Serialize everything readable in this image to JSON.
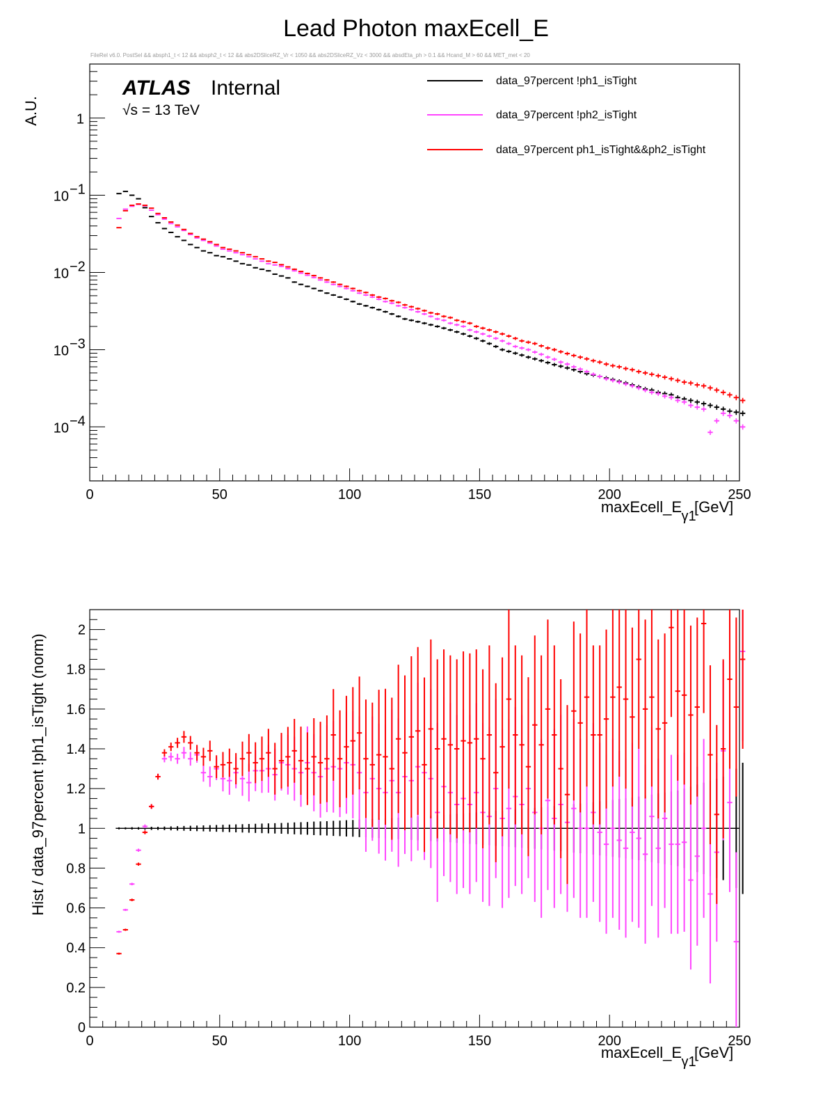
{
  "page": {
    "title": "Lead Photon maxEcell_E",
    "selection": "FileRel v6.0. PostSel &&  absph1_t < 12 && absph2_t < 12 && abs2DSliceRZ_Vr < 1050 && abs2DSliceRZ_Vz < 3000 && absdEta_ph > 0.1 && Hcand_M > 60 && MET_met < 20"
  },
  "atlas": {
    "brand": "ATLAS",
    "status": "Internal",
    "energy": "√s = 13 TeV"
  },
  "colors": {
    "black": "#000000",
    "magenta": "#ff44ff",
    "red": "#ff0000"
  },
  "legend": [
    {
      "label": "data_97percent !ph1_isTight",
      "color": "#000000"
    },
    {
      "label": "data_97percent !ph2_isTight",
      "color": "#ff44ff"
    },
    {
      "label": "data_97percent ph1_isTight&&ph2_isTight",
      "color": "#ff0000"
    }
  ],
  "chart_data": [
    {
      "type": "histogram",
      "scale": "log",
      "xlabel": "maxEcell_E",
      "xlabel_sub": "γ1",
      "xlabel_unit": "[GeV]",
      "ylabel": "A.U.",
      "xlim": [
        0,
        250
      ],
      "ylim": [
        2e-05,
        5
      ],
      "xticks": [
        0,
        50,
        100,
        150,
        200,
        250
      ],
      "yticks": [
        {
          "value": 1,
          "base": "1",
          "exp": ""
        },
        {
          "value": 0.1,
          "base": "10",
          "exp": "−1"
        },
        {
          "value": 0.01,
          "base": "10",
          "exp": "−2"
        },
        {
          "value": 0.001,
          "base": "10",
          "exp": "−3"
        },
        {
          "value": 0.0001,
          "base": "10",
          "exp": "−4"
        }
      ],
      "bin_width": 2.5,
      "first_bin_center": 11.25,
      "series": [
        {
          "name": "data_97percent !ph1_isTight",
          "color": "#000000",
          "values": [
            0.105,
            0.112,
            0.1,
            0.09,
            0.069,
            0.053,
            0.044,
            0.037,
            0.033,
            0.029,
            0.026,
            0.023,
            0.021,
            0.019,
            0.018,
            0.0165,
            0.016,
            0.015,
            0.014,
            0.013,
            0.0125,
            0.0115,
            0.011,
            0.0105,
            0.0095,
            0.009,
            0.0085,
            0.0075,
            0.007,
            0.0066,
            0.0062,
            0.0058,
            0.0054,
            0.0051,
            0.0048,
            0.0045,
            0.0042,
            0.0039,
            0.0037,
            0.0035,
            0.0033,
            0.0031,
            0.0029,
            0.0027,
            0.0025,
            0.0024,
            0.0023,
            0.0022,
            0.0021,
            0.002,
            0.0019,
            0.0018,
            0.0017,
            0.0016,
            0.0015,
            0.0014,
            0.0013,
            0.0012,
            0.0011,
            0.001,
            0.00095,
            0.0009,
            0.00085,
            0.0008,
            0.00076,
            0.00072,
            0.00068,
            0.00064,
            0.00061,
            0.00058,
            0.00055,
            0.00052,
            0.00049,
            0.00047,
            0.00045,
            0.00043,
            0.00041,
            0.00039,
            0.00037,
            0.00035,
            0.00033,
            0.00031,
            0.0003,
            0.00028,
            0.00027,
            0.00026,
            0.00024,
            0.00023,
            0.00022,
            0.00021,
            0.0002,
            0.00019,
            0.00018,
            0.00017,
            0.00016,
            0.000155,
            0.00015
          ]
        },
        {
          "name": "data_97percent !ph2_isTight",
          "color": "#ff44ff",
          "values": [
            0.05,
            0.066,
            0.072,
            0.076,
            0.073,
            0.064,
            0.056,
            0.049,
            0.043,
            0.039,
            0.035,
            0.031,
            0.028,
            0.026,
            0.024,
            0.022,
            0.02,
            0.019,
            0.018,
            0.017,
            0.016,
            0.015,
            0.014,
            0.013,
            0.0125,
            0.012,
            0.0112,
            0.0105,
            0.0098,
            0.0092,
            0.0086,
            0.008,
            0.0075,
            0.007,
            0.0066,
            0.0062,
            0.0058,
            0.0054,
            0.0051,
            0.0048,
            0.0045,
            0.0042,
            0.004,
            0.0037,
            0.0035,
            0.0033,
            0.0031,
            0.0029,
            0.0027,
            0.0025,
            0.0024,
            0.0022,
            0.0021,
            0.002,
            0.0018,
            0.0017,
            0.0016,
            0.0015,
            0.0014,
            0.0013,
            0.0012,
            0.0011,
            0.00105,
            0.001,
            0.00093,
            0.00087,
            0.0008,
            0.00075,
            0.00069,
            0.00065,
            0.0006,
            0.00056,
            0.00052,
            0.00048,
            0.00045,
            0.00042,
            0.0004,
            0.00038,
            0.00036,
            0.00034,
            0.00032,
            0.0003,
            0.00028,
            0.00027,
            0.00025,
            0.00024,
            0.00022,
            0.00021,
            0.00019,
            0.00018,
            0.00017,
            8.5e-05,
            0.00012,
            0.00015,
            0.00014,
            0.00012,
            0.0001
          ]
        },
        {
          "name": "data_97percent ph1_isTight&&ph2_isTight",
          "color": "#ff0000",
          "values": [
            0.038,
            0.063,
            0.074,
            0.077,
            0.074,
            0.068,
            0.058,
            0.051,
            0.045,
            0.041,
            0.036,
            0.032,
            0.029,
            0.027,
            0.025,
            0.023,
            0.021,
            0.02,
            0.019,
            0.018,
            0.017,
            0.016,
            0.015,
            0.014,
            0.0135,
            0.0126,
            0.0118,
            0.011,
            0.0103,
            0.0097,
            0.0091,
            0.0085,
            0.008,
            0.0075,
            0.007,
            0.0066,
            0.0062,
            0.0058,
            0.0055,
            0.0051,
            0.0048,
            0.0046,
            0.0043,
            0.0041,
            0.0038,
            0.0036,
            0.0034,
            0.0032,
            0.003,
            0.0029,
            0.0027,
            0.0026,
            0.0024,
            0.0023,
            0.0022,
            0.002,
            0.0019,
            0.0018,
            0.0017,
            0.0016,
            0.0015,
            0.0014,
            0.0013,
            0.00125,
            0.0012,
            0.00112,
            0.00105,
            0.001,
            0.00094,
            0.00089,
            0.00084,
            0.0008,
            0.00076,
            0.00072,
            0.00069,
            0.00065,
            0.00062,
            0.0006,
            0.00057,
            0.00055,
            0.00052,
            0.0005,
            0.00048,
            0.00046,
            0.00044,
            0.00042,
            0.0004,
            0.00038,
            0.00037,
            0.00035,
            0.00034,
            0.00032,
            0.0003,
            0.00028,
            0.00026,
            0.00024,
            0.00022
          ]
        }
      ]
    },
    {
      "type": "ratio",
      "xlabel": "maxEcell_E",
      "xlabel_sub": "γ1",
      "xlabel_unit": "[GeV]",
      "ylabel": "Hist / data_97percent !ph1_isTight (norm)",
      "xlim": [
        0,
        250
      ],
      "ylim": [
        0,
        2.1
      ],
      "xticks": [
        0,
        50,
        100,
        150,
        200,
        250
      ],
      "yticks": [
        {
          "value": 0,
          "label": "0"
        },
        {
          "value": 0.2,
          "label": "0.2"
        },
        {
          "value": 0.4,
          "label": "0.4"
        },
        {
          "value": 0.6,
          "label": "0.6"
        },
        {
          "value": 0.8,
          "label": "0.8"
        },
        {
          "value": 1,
          "label": "1"
        },
        {
          "value": 1.2,
          "label": "1.2"
        },
        {
          "value": 1.4,
          "label": "1.4"
        },
        {
          "value": 1.6,
          "label": "1.6"
        },
        {
          "value": 1.8,
          "label": "1.8"
        },
        {
          "value": 2,
          "label": "2"
        }
      ],
      "bin_width": 2.5,
      "first_bin_center": 11.25,
      "series": [
        {
          "name": "data_97percent !ph1_isTight",
          "color": "#000000",
          "value": 1.0,
          "errors": [
            0.005,
            0.005,
            0.006,
            0.006,
            0.007,
            0.008,
            0.008,
            0.009,
            0.01,
            0.011,
            0.012,
            0.013,
            0.014,
            0.015,
            0.016,
            0.017,
            0.018,
            0.019,
            0.02,
            0.021,
            0.022,
            0.023,
            0.024,
            0.025,
            0.026,
            0.027,
            0.028,
            0.03,
            0.031,
            0.032,
            0.034,
            0.035,
            0.036,
            0.038,
            0.039,
            0.041,
            0.042,
            0.044,
            0.045,
            0.047,
            0.049,
            0.05,
            0.052,
            0.054,
            0.056,
            0.058,
            0.06,
            0.062,
            0.064,
            0.066,
            0.068,
            0.07,
            0.073,
            0.075,
            0.078,
            0.08,
            0.083,
            0.085,
            0.088,
            0.09,
            0.093,
            0.095,
            0.098,
            0.1,
            0.103,
            0.106,
            0.109,
            0.112,
            0.115,
            0.118,
            0.122,
            0.125,
            0.128,
            0.132,
            0.136,
            0.14,
            0.143,
            0.147,
            0.151,
            0.155,
            0.16,
            0.165,
            0.17,
            0.175,
            0.18,
            0.185,
            0.19,
            0.2,
            0.21,
            0.22,
            0.23,
            0.24,
            0.25,
            0.26,
            0.28,
            0.3,
            0.33
          ]
        },
        {
          "name": "data_97percent !ph2_isTight",
          "color": "#ff44ff",
          "values": [
            0.48,
            0.59,
            0.72,
            0.89,
            1.01,
            1.11,
            1.26,
            1.35,
            1.36,
            1.35,
            1.38,
            1.35,
            1.37,
            1.28,
            1.26,
            1.3,
            1.25,
            1.24,
            1.28,
            1.25,
            1.23,
            1.29,
            1.29,
            1.3,
            1.27,
            1.33,
            1.32,
            1.3,
            1.28,
            1.33,
            1.28,
            1.26,
            1.3,
            1.31,
            1.3,
            1.33,
            1.32,
            1.28,
            1.18,
            1.25,
            1.2,
            1.18,
            1.24,
            1.18,
            1.26,
            1.24,
            1.31,
            1.28,
            1.25,
            1.08,
            1.21,
            1.18,
            1.12,
            1.15,
            1.12,
            1.18,
            1.08,
            1.06,
            1.2,
            1.05,
            1.1,
            1.16,
            1.12,
            1.2,
            1.08,
            1.0,
            1.14,
            1.05,
            1.12,
            1.03,
            1.1,
            1.0,
            1.0,
            1.08,
            0.98,
            0.92,
            1.0,
            0.94,
            0.9,
            0.98,
            0.95,
            0.87,
            1.06,
            0.9,
            1.05,
            0.92,
            0.92,
            0.93,
            0.74,
            0.86,
            1.0,
            0.67,
            0.88,
            1.39,
            1.13,
            0.43,
            1.89
          ]
        },
        {
          "name": "data_97percent ph1_isTight&&ph2_isTight",
          "color": "#ff0000",
          "values": [
            0.37,
            0.49,
            0.64,
            0.82,
            0.98,
            1.11,
            1.26,
            1.38,
            1.41,
            1.43,
            1.46,
            1.43,
            1.38,
            1.36,
            1.39,
            1.31,
            1.32,
            1.33,
            1.3,
            1.35,
            1.38,
            1.33,
            1.35,
            1.38,
            1.3,
            1.34,
            1.36,
            1.39,
            1.34,
            1.3,
            1.36,
            1.33,
            1.35,
            1.47,
            1.35,
            1.41,
            1.44,
            1.48,
            1.35,
            1.32,
            1.37,
            1.36,
            1.3,
            1.45,
            1.38,
            1.46,
            1.49,
            1.32,
            1.5,
            1.4,
            1.45,
            1.42,
            1.4,
            1.44,
            1.43,
            1.45,
            1.35,
            1.47,
            1.28,
            1.41,
            1.65,
            1.47,
            1.42,
            1.31,
            1.52,
            1.42,
            1.6,
            1.47,
            1.3,
            1.17,
            1.59,
            1.53,
            1.66,
            1.47,
            1.47,
            1.55,
            1.66,
            1.71,
            1.65,
            1.56,
            1.85,
            1.6,
            1.66,
            1.5,
            1.53,
            2.01,
            1.69,
            1.67,
            1.57,
            1.61,
            2.03,
            1.37,
            1.07,
            1.4,
            1.75,
            1.61,
            1.85
          ]
        }
      ]
    }
  ]
}
